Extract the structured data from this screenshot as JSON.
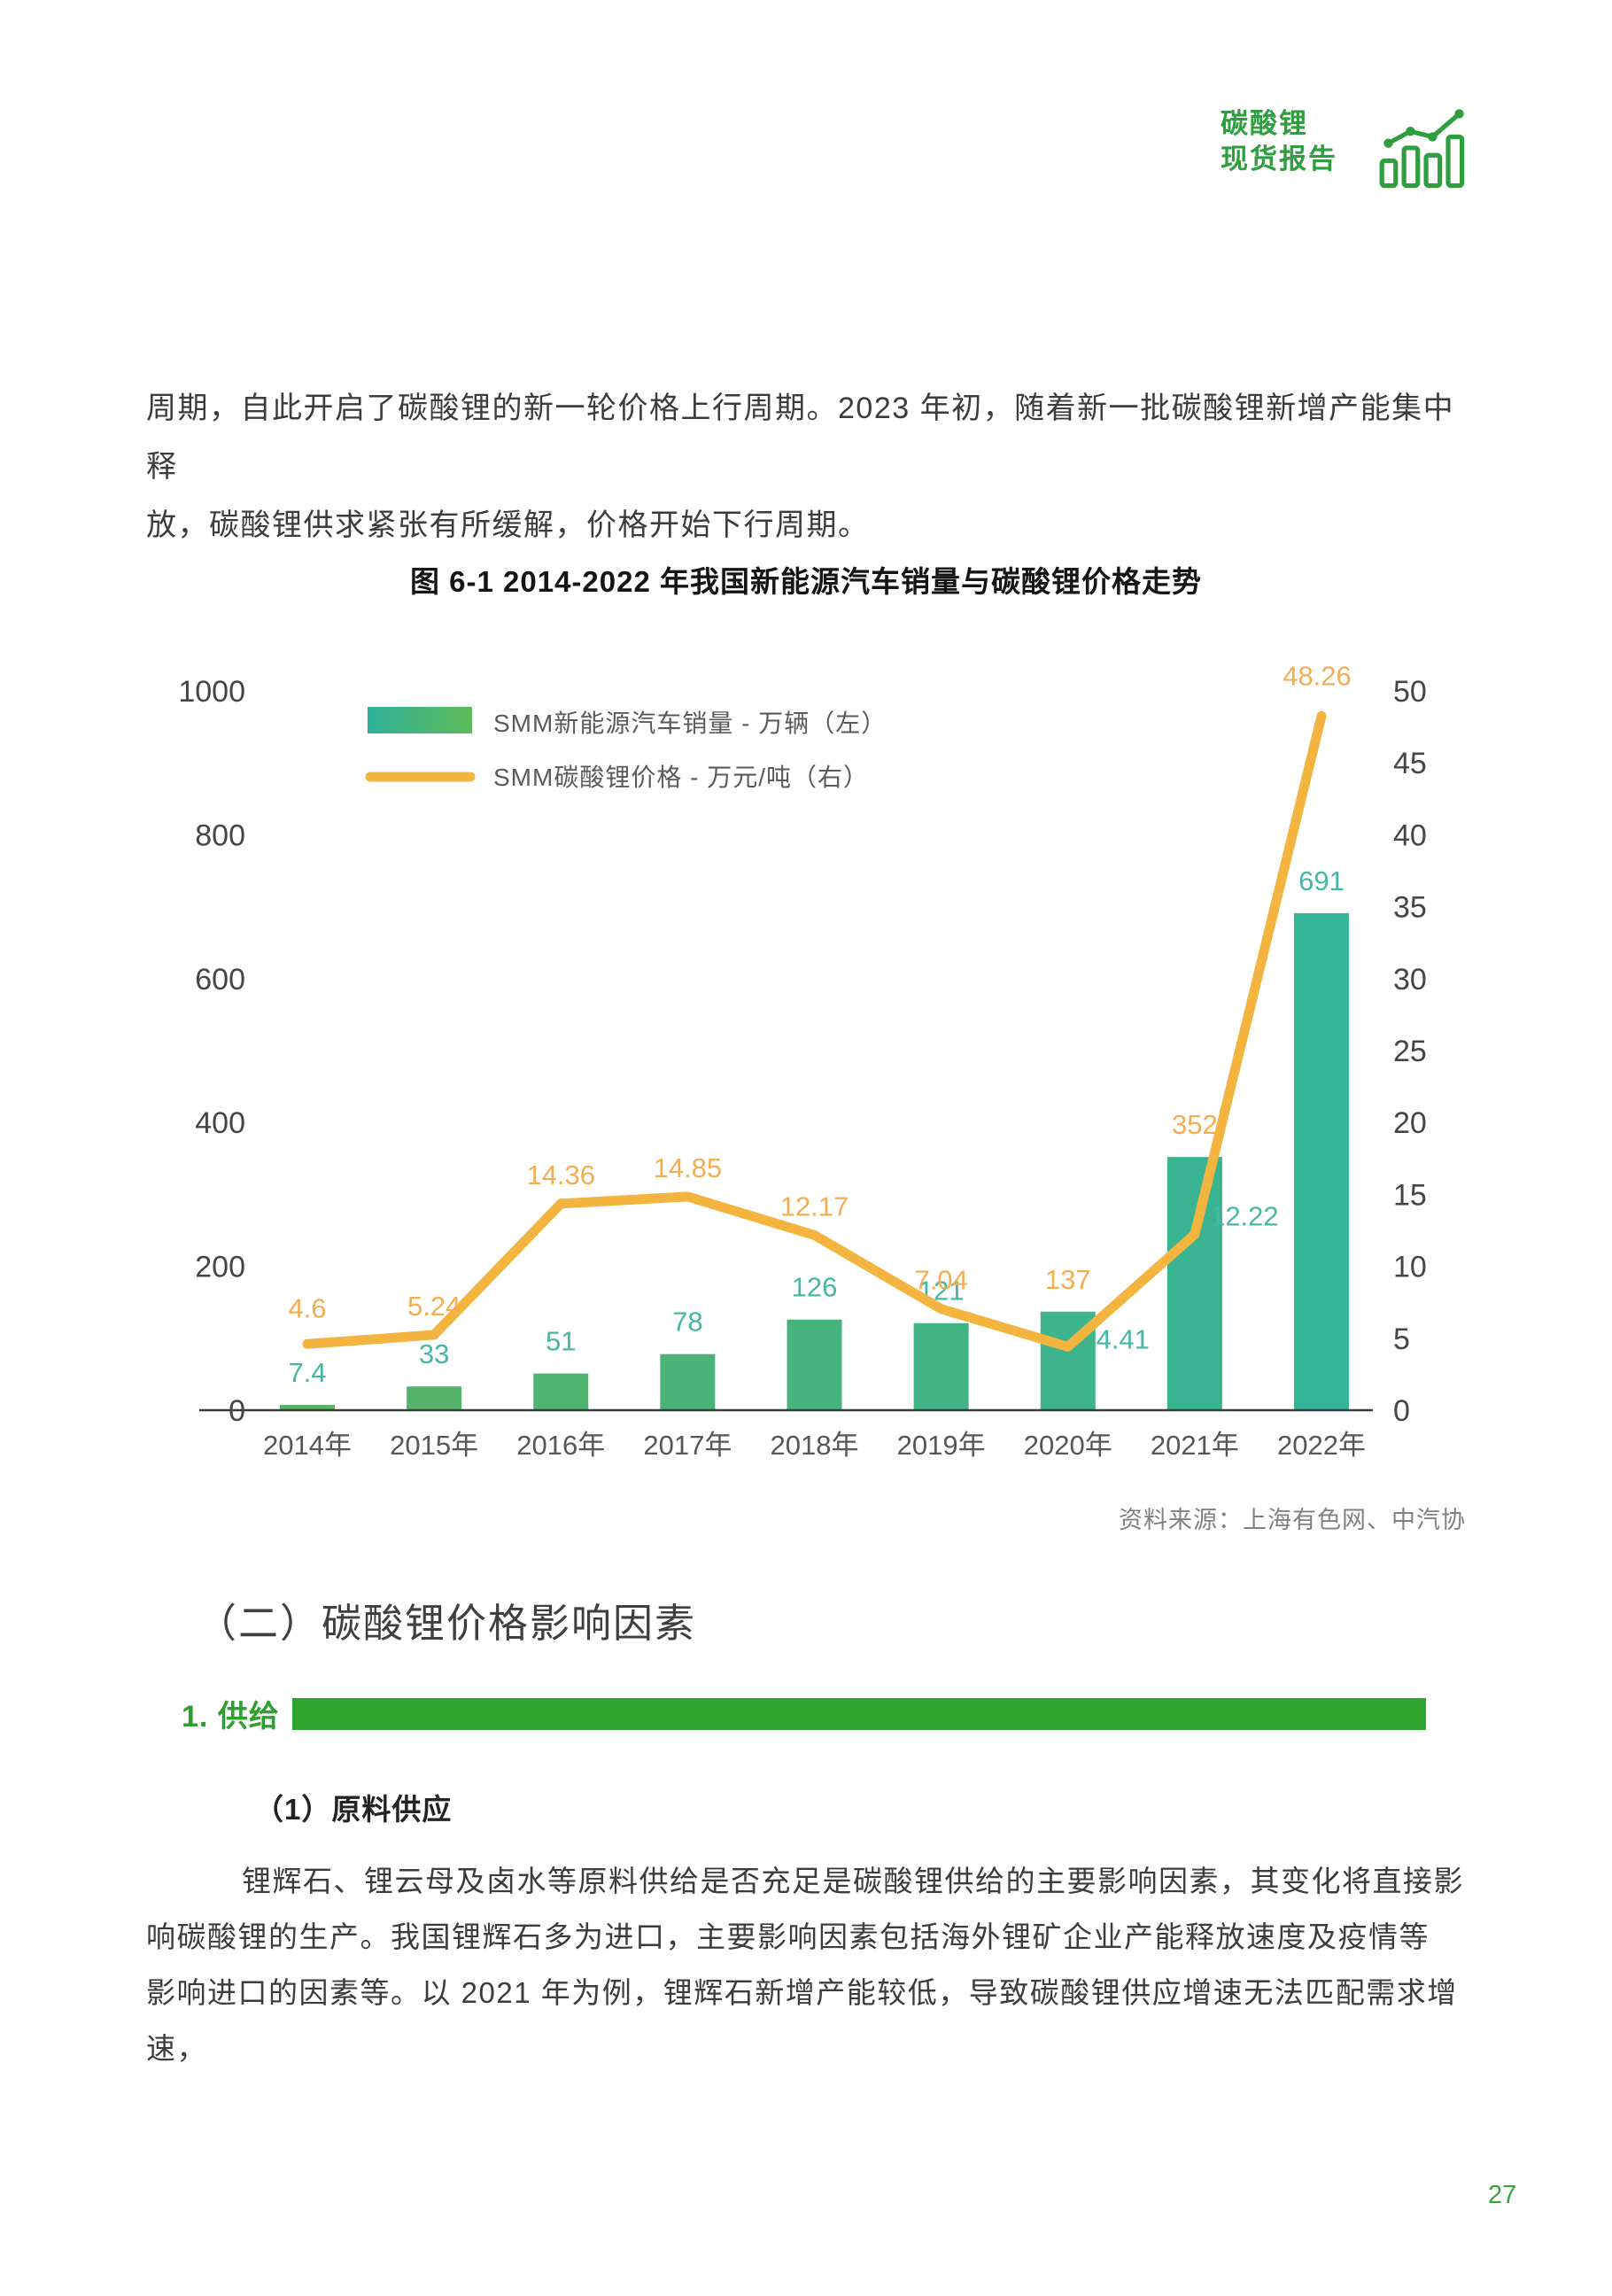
{
  "logo": {
    "line1": "碳酸锂",
    "line2": "现货报告"
  },
  "intro": {
    "line1": "周期，自此开启了碳酸锂的新一轮价格上行周期。2023 年初，随着新一批碳酸锂新增产能集中释",
    "line2": "放，碳酸锂供求紧张有所缓解，价格开始下行周期。"
  },
  "chart": {
    "title": "图 6-1 2014-2022 年我国新能源汽车销量与碳酸锂价格走势",
    "source": "资料来源：上海有色网、中汽协"
  },
  "chart_data": {
    "type": "bar+line",
    "categories": [
      "2014年",
      "2015年",
      "2016年",
      "2017年",
      "2018年",
      "2019年",
      "2020年",
      "2021年",
      "2022年"
    ],
    "series": [
      {
        "name": "SMM新能源汽车销量 - 万辆（左）",
        "type": "bar",
        "axis": "left",
        "values": [
          7.4,
          33,
          51,
          78,
          126,
          121,
          137,
          352,
          691
        ],
        "labels": [
          "7.4",
          "33",
          "51",
          "78",
          "126",
          "121",
          "137",
          "352",
          "691"
        ],
        "label_colors": [
          "teal",
          "teal",
          "teal",
          "teal",
          "teal",
          "teal",
          "orange",
          "orange",
          "teal"
        ]
      },
      {
        "name": "SMM碳酸锂价格 - 万元/吨（右）",
        "type": "line",
        "axis": "right",
        "values": [
          4.6,
          5.24,
          14.36,
          14.85,
          12.17,
          7.04,
          4.41,
          12.22,
          48.26
        ],
        "labels": [
          "4.6",
          "5.24",
          "14.36",
          "14.85",
          "12.17",
          "7.04",
          "4.41",
          "12.22",
          "48.26"
        ],
        "label_colors": [
          "orange",
          "orange",
          "orange",
          "orange",
          "orange",
          "orange",
          "teal",
          "teal",
          "orange"
        ]
      }
    ],
    "left_axis": {
      "ticks": [
        0,
        200,
        400,
        600,
        800,
        1000
      ],
      "range": [
        0,
        1000
      ]
    },
    "right_axis": {
      "ticks": [
        0,
        5,
        10,
        15,
        20,
        25,
        30,
        35,
        40,
        45,
        50
      ],
      "range": [
        0,
        50
      ]
    },
    "legend_position": "top-left-inside",
    "grid": false,
    "colors": {
      "bar_color_2014": "#58b365",
      "bar_color_2022": "#34b497",
      "line": "#f3b440",
      "label_teal": "#46b7a5",
      "label_orange": "#f3ae52",
      "axis_text": "#454545",
      "year_text": "#565656",
      "axis_line": "#3a3a3a",
      "legend_text": "#5a5a5a"
    }
  },
  "section2": {
    "heading": "（二）碳酸锂价格影响因素"
  },
  "supply": {
    "heading": "1. 供给"
  },
  "subsection": {
    "heading": "（1）原料供应"
  },
  "body": {
    "line1": "锂辉石、锂云母及卤水等原料供给是否充足是碳酸锂供给的主要影响因素，其变化将直接影",
    "line2": "响碳酸锂的生产。我国锂辉石多为进口，主要影响因素包括海外锂矿企业产能释放速度及疫情等",
    "line3": "影响进口的因素等。以 2021 年为例，锂辉石新增产能较低，导致碳酸锂供应增速无法匹配需求增速，"
  },
  "footer": {
    "page_number": "27"
  }
}
